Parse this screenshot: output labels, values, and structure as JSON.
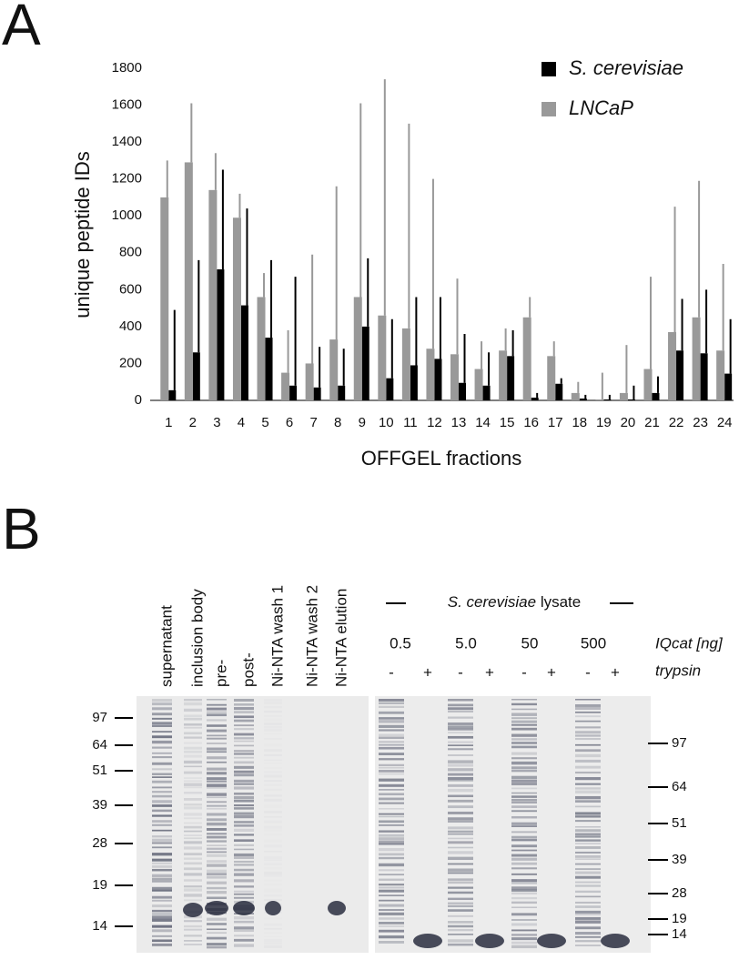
{
  "panel_labels": [
    "A",
    "B"
  ],
  "chart_data": {
    "type": "bar",
    "ylabel": "unique peptide IDs",
    "xlabel": "OFFGEL fractions",
    "categories": [
      "1",
      "2",
      "3",
      "4",
      "5",
      "6",
      "7",
      "8",
      "9",
      "10",
      "11",
      "12",
      "13",
      "14",
      "15",
      "16",
      "17",
      "18",
      "19",
      "20",
      "21",
      "22",
      "23",
      "24"
    ],
    "series": [
      {
        "name": "S. cerevisiae",
        "color": "#000000",
        "values": [
          55,
          260,
          710,
          515,
          340,
          80,
          70,
          80,
          400,
          120,
          190,
          225,
          95,
          80,
          240,
          15,
          90,
          10,
          5,
          5,
          40,
          270,
          255,
          145
        ],
        "errors": [
          435,
          500,
          540,
          525,
          420,
          590,
          220,
          200,
          370,
          320,
          370,
          335,
          265,
          180,
          140,
          25,
          30,
          20,
          25,
          75,
          90,
          280,
          345,
          295
        ]
      },
      {
        "name": "LNCaP",
        "color": "#999999",
        "values": [
          1100,
          1290,
          1140,
          990,
          560,
          150,
          200,
          330,
          560,
          460,
          390,
          280,
          250,
          170,
          270,
          450,
          240,
          40,
          5,
          40,
          170,
          370,
          450,
          270
        ],
        "errors": [
          200,
          320,
          200,
          130,
          130,
          230,
          590,
          830,
          1050,
          1280,
          1110,
          920,
          410,
          150,
          120,
          110,
          80,
          60,
          145,
          260,
          500,
          680,
          740,
          470
        ]
      }
    ],
    "ylim": [
      0,
      1800
    ],
    "yticks": [
      0,
      200,
      400,
      600,
      800,
      1000,
      1200,
      1400,
      1600,
      1800
    ],
    "grid": false
  },
  "gel_left": {
    "lanes": [
      "supernatant",
      "inclusion body",
      "pre-",
      "post-",
      "Ni-NTA wash 1",
      "Ni-NTA wash 2",
      "Ni-NTA elution"
    ],
    "markers": [
      97,
      64,
      51,
      39,
      28,
      19,
      14
    ]
  },
  "gel_right": {
    "title_species": "S. cerevisiae",
    "title_rest": "lysate",
    "amounts": [
      "0.5",
      "5.0",
      "50",
      "500"
    ],
    "amount_label": "IQcat [ng]",
    "trypsin_label": "trypsin",
    "trypsin": [
      "-",
      "+"
    ],
    "markers": [
      97,
      64,
      51,
      39,
      28,
      19,
      14
    ]
  }
}
